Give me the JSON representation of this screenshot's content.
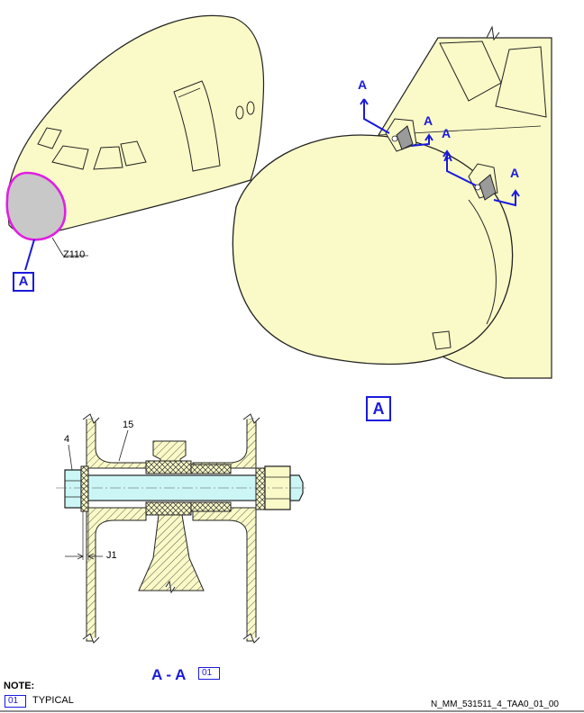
{
  "callouts": {
    "zone": "Z110",
    "detail_box_small": "A",
    "detail_box_large": "A",
    "arrow_labels": [
      "A",
      "A",
      "A",
      "A",
      "A"
    ],
    "item_4": "4",
    "item_15": "15",
    "dim_j1": "J1"
  },
  "section": {
    "title": "A - A",
    "ref_tag": "01"
  },
  "note": {
    "heading": "NOTE:",
    "tag": "01",
    "text": "TYPICAL"
  },
  "doc_id": "N_MM_531511_4_TAA0_01_00",
  "colors": {
    "fill_yellow": "#fafac8",
    "fill_cyan": "#ccf6f6",
    "accent_blue": "#1a1adc",
    "highlight_magenta": "#e020e0",
    "radome_grey": "#c8c8c8"
  }
}
